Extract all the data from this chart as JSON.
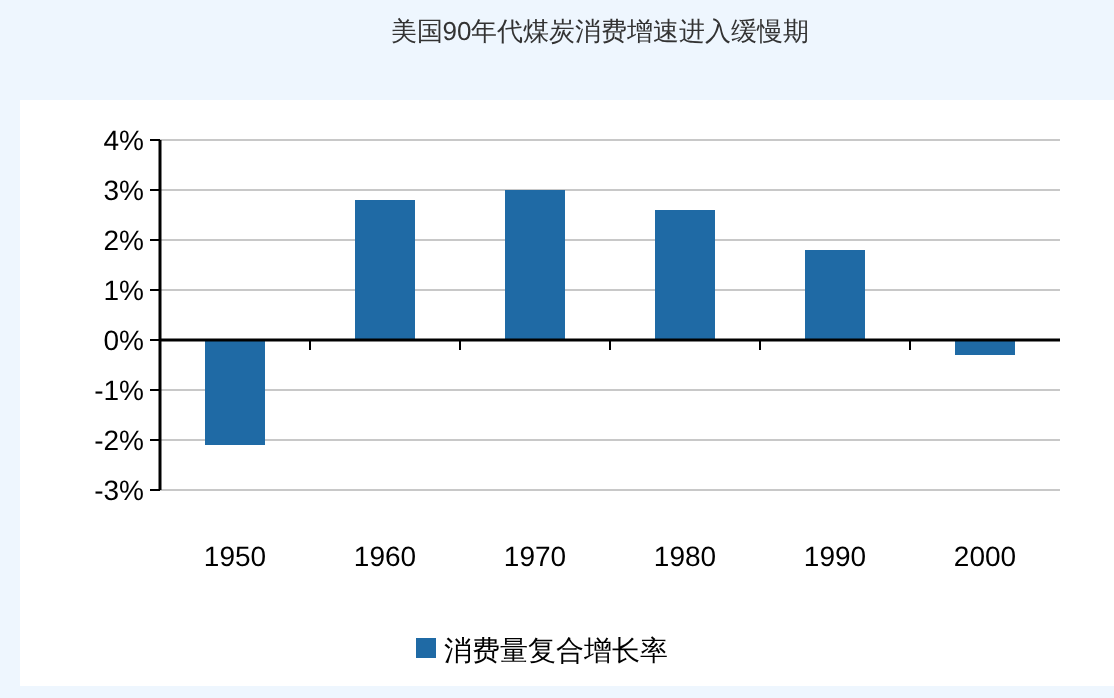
{
  "chart_data": {
    "type": "bar",
    "title": "美国90年代煤炭消费增速进入缓慢期",
    "categories": [
      "1950",
      "1960",
      "1970",
      "1980",
      "1990",
      "2000"
    ],
    "series": [
      {
        "name": "消费量复合增长率",
        "color": "#1f6aa5",
        "values": [
          -2.1,
          2.8,
          3.0,
          2.6,
          1.8,
          -0.3
        ]
      }
    ],
    "ylim": [
      -3,
      4
    ],
    "yticks": [
      {
        "value": -3,
        "label": "-3%"
      },
      {
        "value": -2,
        "label": "-2%"
      },
      {
        "value": -1,
        "label": "-1%"
      },
      {
        "value": 0,
        "label": "0%"
      },
      {
        "value": 1,
        "label": "1%"
      },
      {
        "value": 2,
        "label": "2%"
      },
      {
        "value": 3,
        "label": "3%"
      },
      {
        "value": 4,
        "label": "4%"
      }
    ],
    "grid": "y",
    "legend": "bottom"
  }
}
